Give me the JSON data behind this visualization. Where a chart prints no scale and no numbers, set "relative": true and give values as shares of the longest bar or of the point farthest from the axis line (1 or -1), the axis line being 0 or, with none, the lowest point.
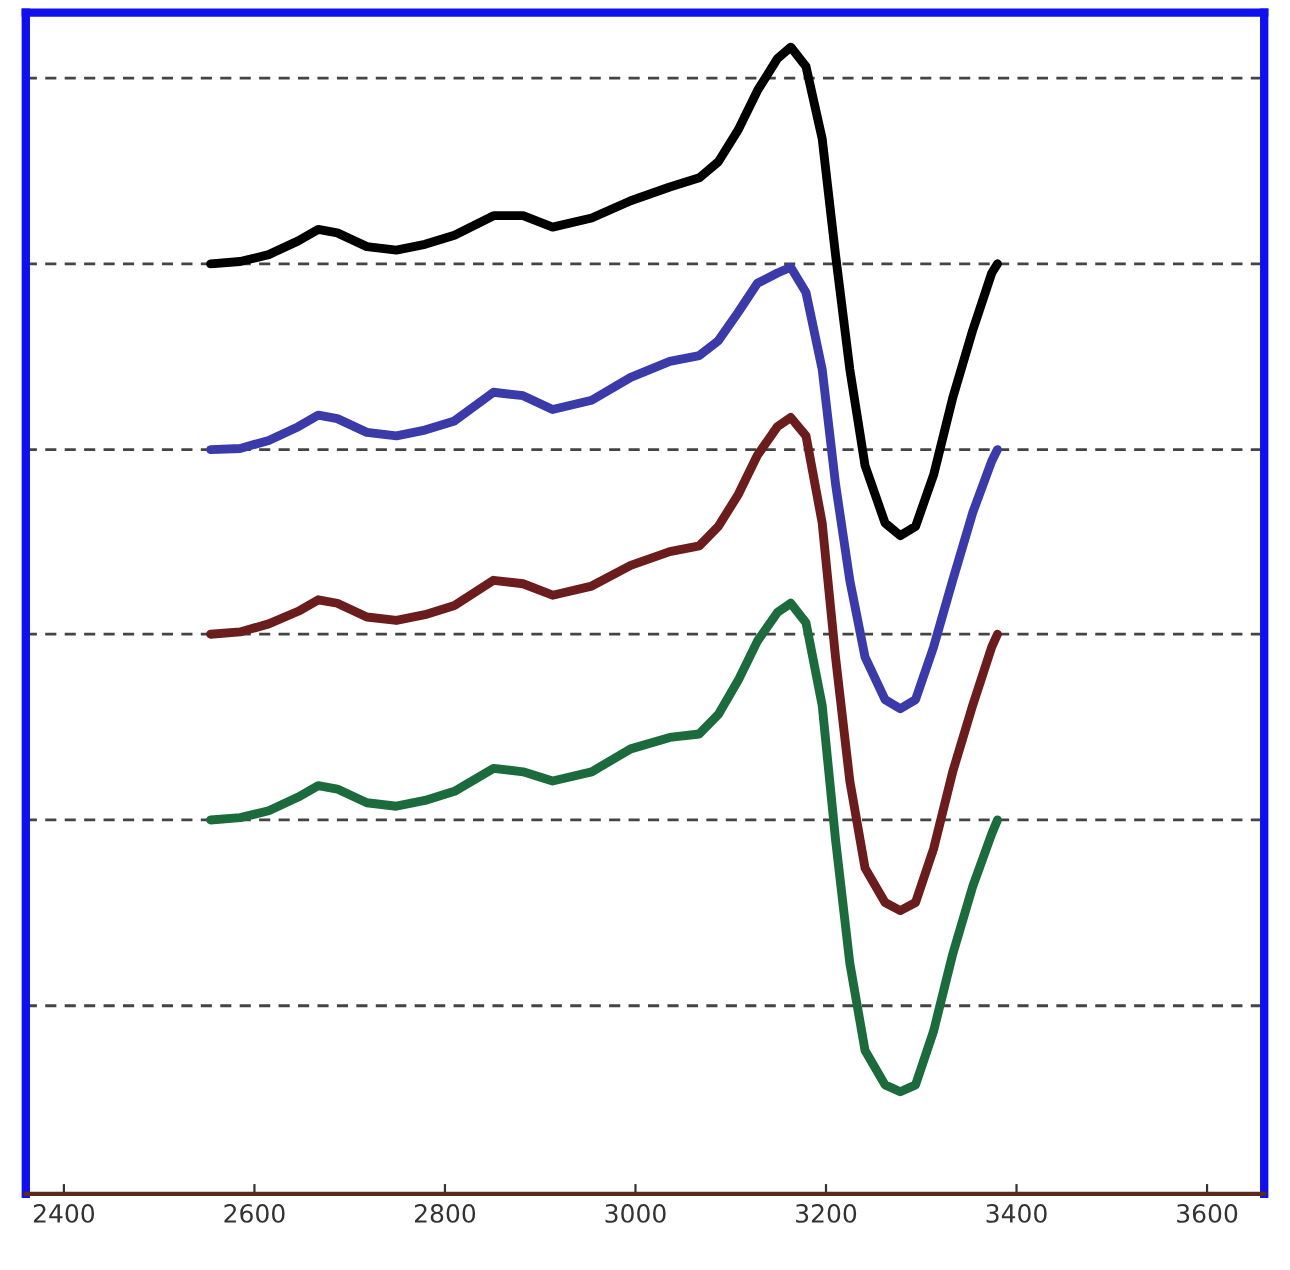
{
  "chart_data": {
    "type": "line",
    "relative": true,
    "xlim": [
      2360,
      3660
    ],
    "xticks": [
      2400,
      2600,
      2800,
      3000,
      3200,
      3400,
      3600
    ],
    "tick_labels": "x",
    "marker": "none",
    "line_style": "solid",
    "x": [
      2554,
      2585,
      2615,
      2646,
      2667,
      2687,
      2718,
      2749,
      2779,
      2810,
      2851,
      2882,
      2913,
      2954,
      2995,
      3036,
      3067,
      3087,
      3108,
      3128,
      3149,
      3163,
      3179,
      3196,
      3210,
      3225,
      3241,
      3262,
      3278,
      3294,
      3313,
      3333,
      3354,
      3374,
      3380
    ],
    "series": [
      {
        "color": "#000000",
        "values": [
          0.811,
          0.813,
          0.819,
          0.831,
          0.841,
          0.838,
          0.826,
          0.823,
          0.828,
          0.836,
          0.853,
          0.853,
          0.843,
          0.851,
          0.866,
          0.878,
          0.886,
          0.9,
          0.928,
          0.962,
          0.99,
          1.0,
          0.983,
          0.92,
          0.819,
          0.719,
          0.635,
          0.585,
          0.574,
          0.582,
          0.627,
          0.694,
          0.753,
          0.803,
          0.811
        ]
      },
      {
        "color": "#3a3aa8",
        "values": [
          0.649,
          0.65,
          0.657,
          0.669,
          0.679,
          0.676,
          0.664,
          0.661,
          0.666,
          0.674,
          0.699,
          0.696,
          0.684,
          0.692,
          0.712,
          0.726,
          0.731,
          0.744,
          0.769,
          0.794,
          0.803,
          0.808,
          0.786,
          0.719,
          0.619,
          0.535,
          0.468,
          0.431,
          0.423,
          0.431,
          0.477,
          0.535,
          0.594,
          0.639,
          0.649
        ]
      },
      {
        "color": "#6b1c1c",
        "values": [
          0.488,
          0.49,
          0.497,
          0.508,
          0.518,
          0.515,
          0.503,
          0.5,
          0.505,
          0.513,
          0.535,
          0.532,
          0.522,
          0.53,
          0.548,
          0.56,
          0.565,
          0.582,
          0.61,
          0.644,
          0.669,
          0.677,
          0.661,
          0.585,
          0.468,
          0.36,
          0.284,
          0.254,
          0.247,
          0.254,
          0.301,
          0.368,
          0.426,
          0.477,
          0.488
        ]
      },
      {
        "color": "#1c6b3c",
        "values": [
          0.326,
          0.328,
          0.334,
          0.346,
          0.356,
          0.353,
          0.341,
          0.338,
          0.343,
          0.351,
          0.371,
          0.368,
          0.36,
          0.368,
          0.388,
          0.398,
          0.401,
          0.418,
          0.448,
          0.482,
          0.507,
          0.515,
          0.498,
          0.426,
          0.309,
          0.201,
          0.125,
          0.095,
          0.089,
          0.095,
          0.142,
          0.209,
          0.268,
          0.314,
          0.326
        ]
      }
    ],
    "ref_lines": [
      {
        "axis": "y",
        "value": 0.973,
        "color": "#444444",
        "line_style": "dashed"
      },
      {
        "axis": "y",
        "value": 0.811,
        "color": "#444444",
        "line_style": "dashed"
      },
      {
        "axis": "y",
        "value": 0.649,
        "color": "#444444",
        "line_style": "dashed"
      },
      {
        "axis": "y",
        "value": 0.488,
        "color": "#444444",
        "line_style": "dashed"
      },
      {
        "axis": "y",
        "value": 0.326,
        "color": "#444444",
        "line_style": "dashed"
      },
      {
        "axis": "y",
        "value": 0.164,
        "color": "#444444",
        "line_style": "dashed"
      }
    ]
  }
}
